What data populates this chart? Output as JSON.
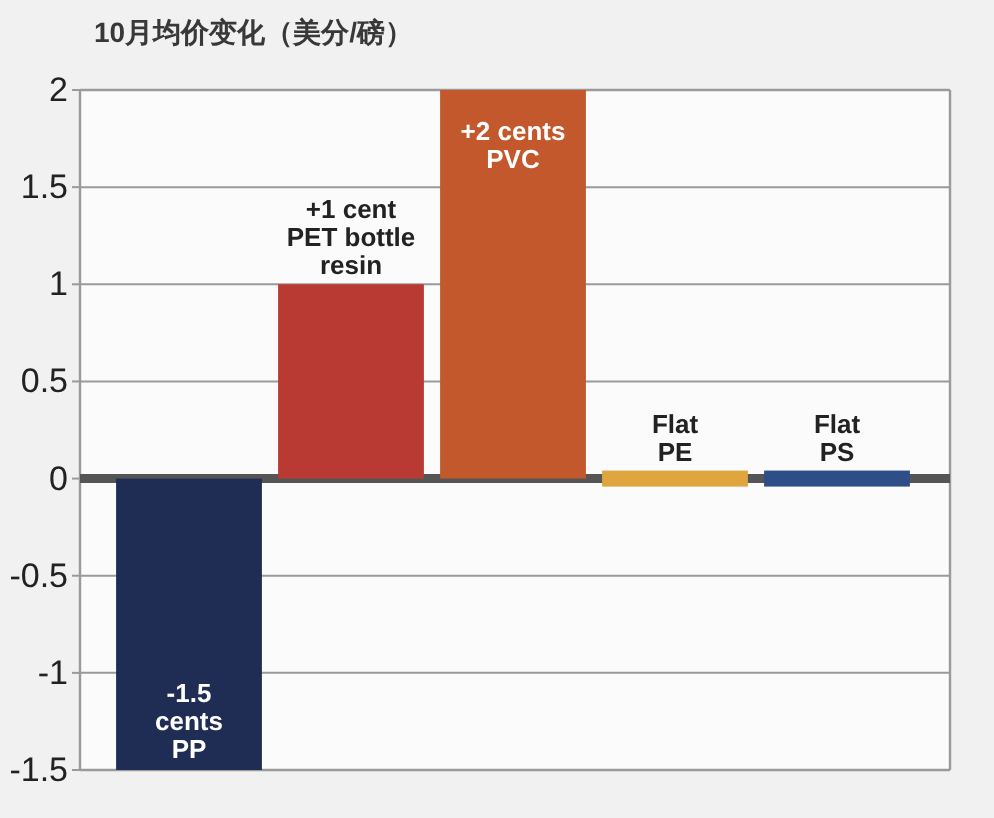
{
  "chart_data": {
    "type": "bar",
    "title": "10月均价变化（美分/磅）",
    "categories": [
      null,
      null,
      null,
      null,
      null
    ],
    "values": [
      -1.5,
      1,
      2,
      0,
      0
    ],
    "colors": [
      "#1f2c54",
      "#b83a32",
      "#c3582d",
      "#dfa640",
      "#2f4d86"
    ],
    "value_labels": [
      "-1.5\ncents\nPP",
      "+1 cent\nPET bottle\nresin",
      "+2 cents\nPVC",
      "Flat\nPE",
      "Flat\nPS"
    ],
    "ylim": [
      -1.5,
      2
    ],
    "yticks": [
      2,
      1.5,
      1,
      0.5,
      0,
      -0.5,
      -1,
      -1.5
    ],
    "grid": "y"
  }
}
